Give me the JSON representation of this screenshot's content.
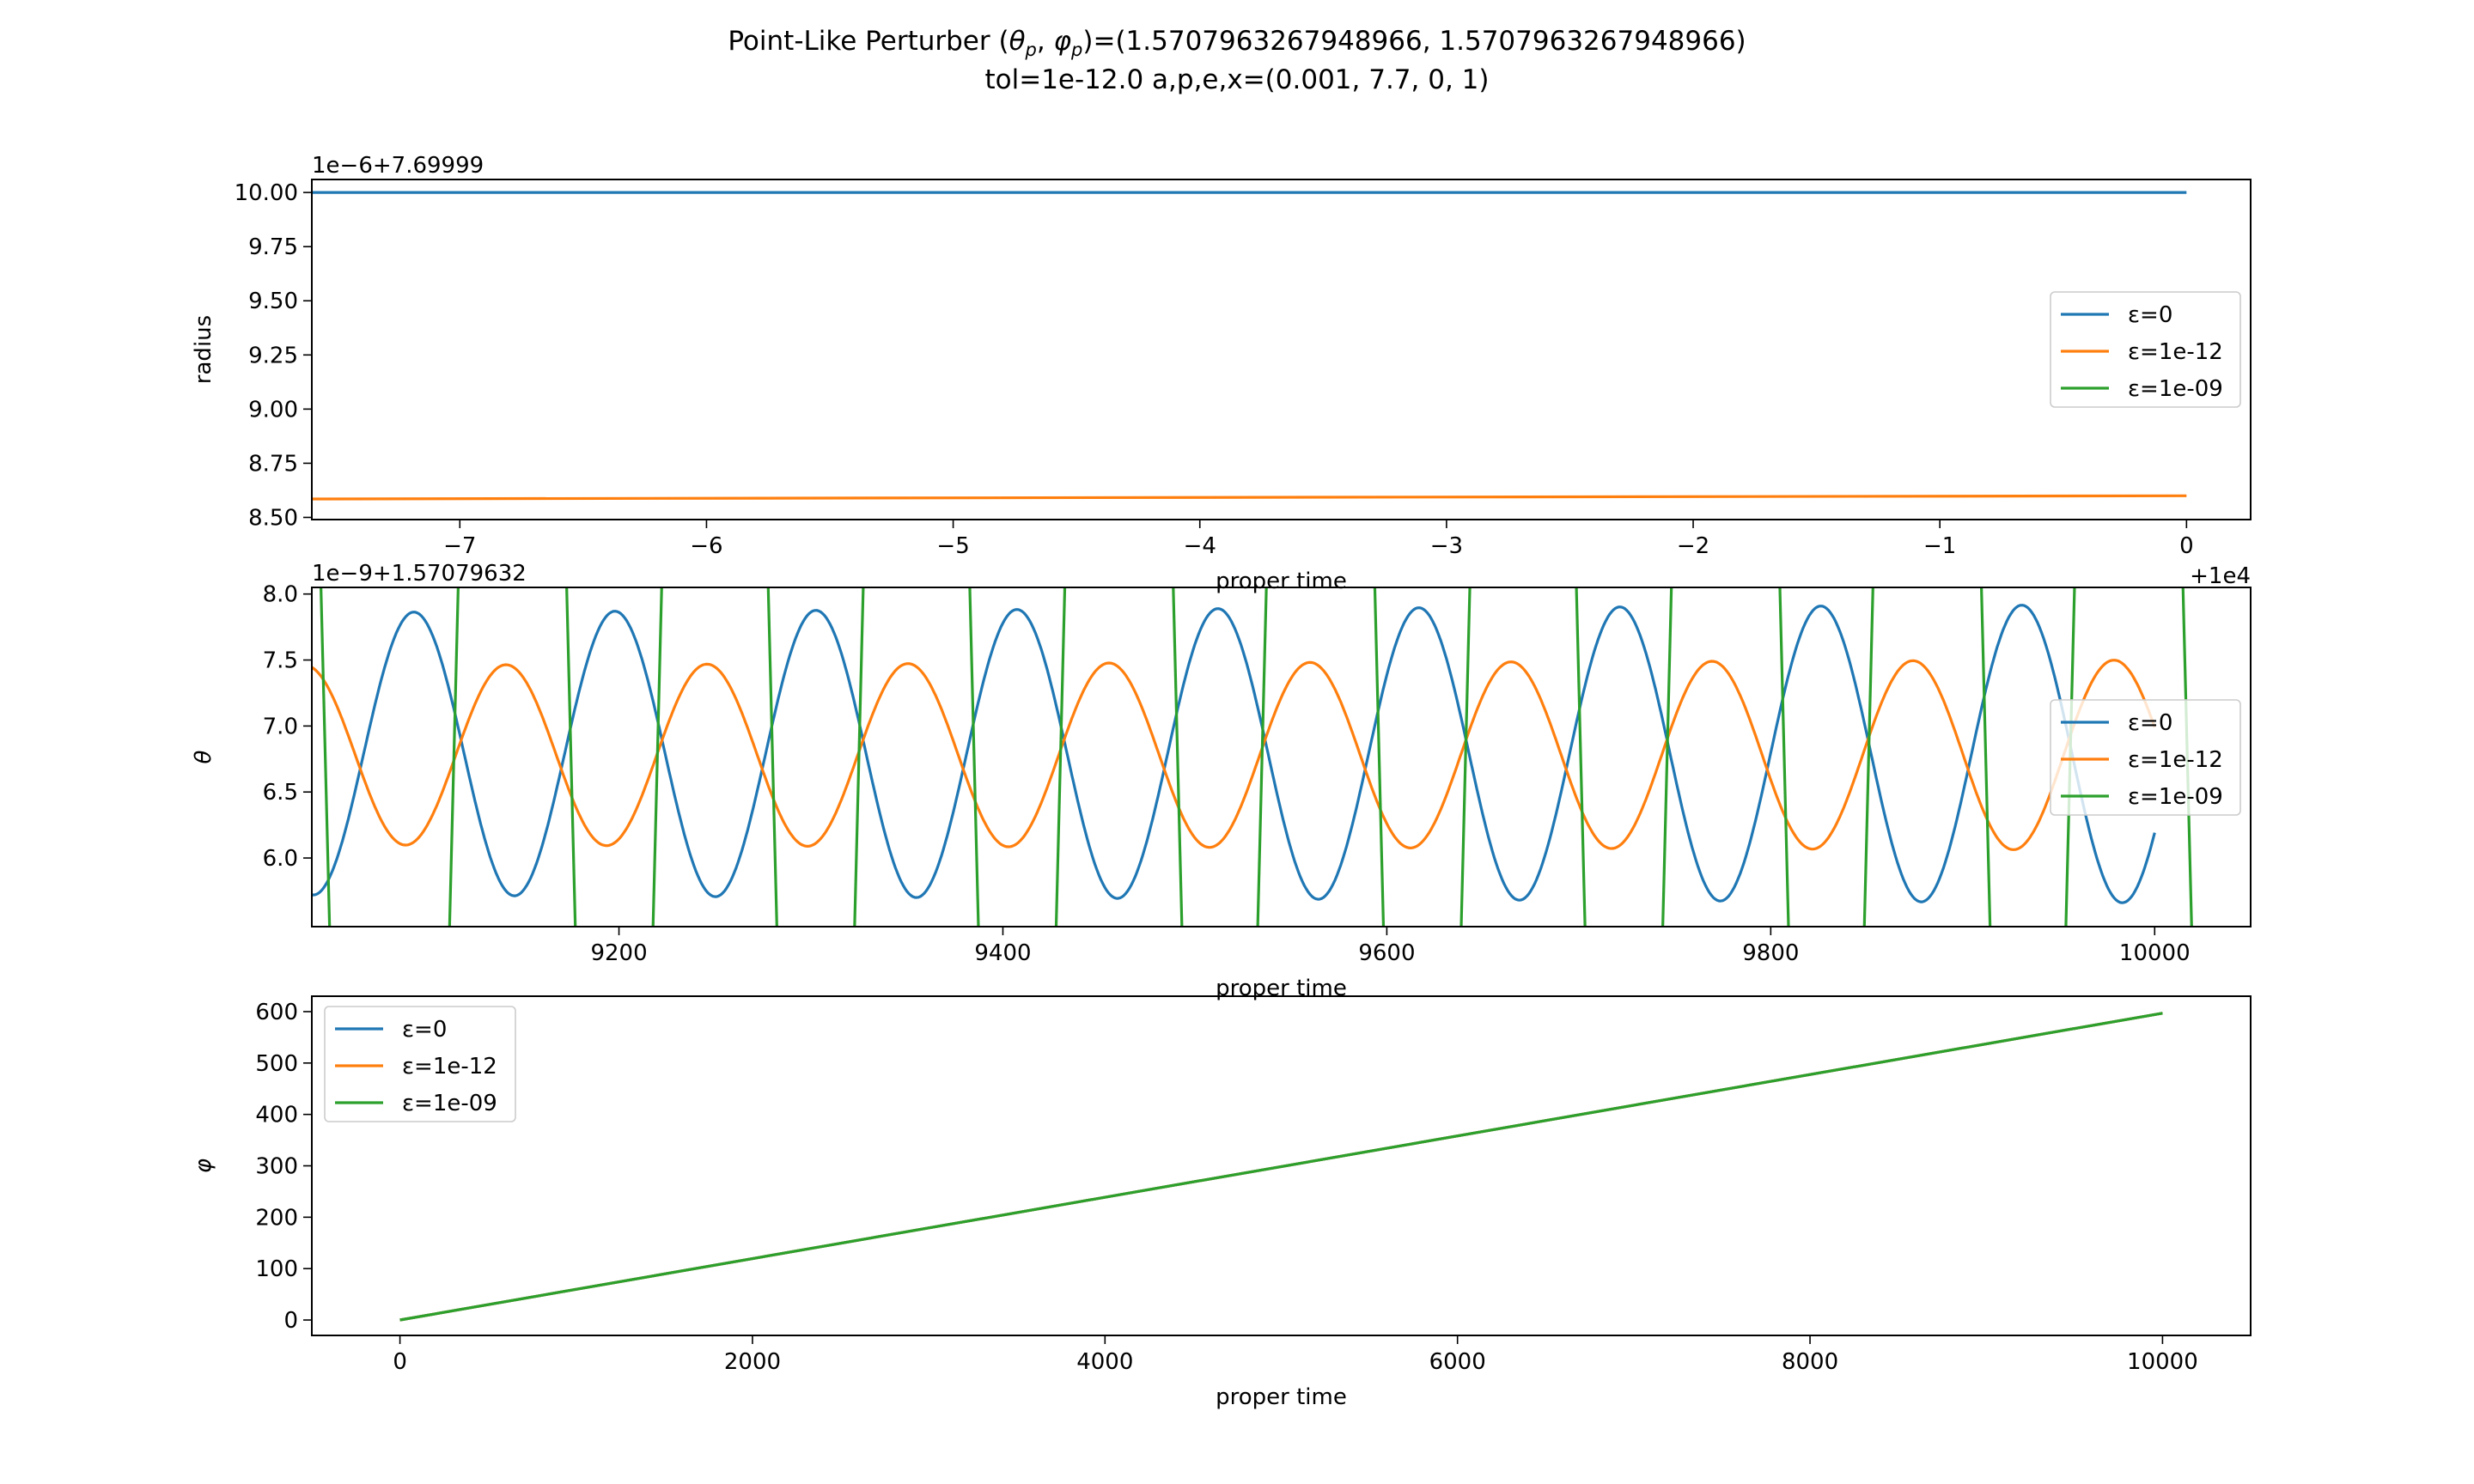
{
  "figure": {
    "title_line1_prefix": "Point-Like Perturber (",
    "title_line1_math": "θp, φp",
    "title_line1_suffix": ")=(1.5707963267948966, 1.5707963267948966)",
    "title_line2": "tol=1e-12.0 a,p,e,x=(0.001, 7.7, 0, 1)"
  },
  "colors": {
    "eps0": "#1f77b4",
    "eps1e12": "#ff7f0e",
    "eps1e09": "#2ca02c"
  },
  "legend_entries": [
    "ε=0",
    "ε=1e-12",
    "ε=1e-09"
  ],
  "chart_data": [
    {
      "type": "line",
      "ylabel": "radius",
      "xlabel": "proper time",
      "y_offset_text": "1e−6+7.69999",
      "x_offset_text": "+1e4",
      "xlim": [
        -7.6,
        0.26
      ],
      "ylim": [
        8.49,
        10.06
      ],
      "xticks": [
        -7,
        -6,
        -5,
        -4,
        -3,
        -2,
        -1,
        0
      ],
      "xtick_labels": [
        "−7",
        "−6",
        "−5",
        "−4",
        "−3",
        "−2",
        "−1",
        "0"
      ],
      "yticks": [
        8.5,
        8.75,
        9.0,
        9.25,
        9.5,
        9.75,
        10.0
      ],
      "ytick_labels": [
        "8.50",
        "8.75",
        "9.00",
        "9.25",
        "9.50",
        "9.75",
        "10.00"
      ],
      "legend_position": "center-right",
      "series": [
        {
          "name": "ε=0",
          "x": [
            -7.6,
            0
          ],
          "y": [
            10.0,
            10.0
          ]
        },
        {
          "name": "ε=1e-12",
          "x": [
            -7.6,
            0
          ],
          "y": [
            8.585,
            8.6
          ]
        },
        {
          "name": "ε=1e-09",
          "x": [],
          "y": []
        }
      ]
    },
    {
      "type": "line",
      "ylabel": "θ",
      "xlabel": "proper time",
      "y_offset_text": "1e−9+1.57079632",
      "xlim": [
        9040,
        10050
      ],
      "ylim": [
        5.48,
        8.05
      ],
      "xticks": [
        9200,
        9400,
        9600,
        9800,
        10000
      ],
      "xtick_labels": [
        "9200",
        "9400",
        "9600",
        "9800",
        "10000"
      ],
      "yticks": [
        6.0,
        6.5,
        7.0,
        7.5,
        8.0
      ],
      "ytick_labels": [
        "6.0",
        "6.5",
        "7.0",
        "7.5",
        "8.0"
      ],
      "legend_position": "center-right",
      "series": [
        {
          "name": "ε=0",
          "period": 104.7,
          "center": 6.79,
          "amp0": 1.07,
          "amp1": 1.13,
          "phase_x": 9067,
          "end_x": 10000
        },
        {
          "name": "ε=1e-12",
          "period": 104.7,
          "center": 6.78,
          "amp0": 0.68,
          "amp1": 0.72,
          "phase_x": 9115,
          "end_x": 10000
        },
        {
          "name": "ε=1e-09",
          "slope_per_unit": -0.18,
          "crossings_at_top": [
            9043,
            9118,
            9171,
            9224,
            9276,
            9329,
            9381,
            9434,
            9487,
            9539,
            9592,
            9645,
            9697,
            9750,
            9803,
            9855,
            9908,
            9960,
            10013
          ]
        }
      ]
    },
    {
      "type": "line",
      "ylabel": "φ",
      "xlabel": "proper time",
      "xlim": [
        -500,
        10500
      ],
      "ylim": [
        -30,
        630
      ],
      "xticks": [
        0,
        2000,
        4000,
        6000,
        8000,
        10000
      ],
      "xtick_labels": [
        "0",
        "2000",
        "4000",
        "6000",
        "8000",
        "10000"
      ],
      "yticks": [
        0,
        100,
        200,
        300,
        400,
        500,
        600
      ],
      "ytick_labels": [
        "0",
        "100",
        "200",
        "300",
        "400",
        "500",
        "600"
      ],
      "legend_position": "upper-left",
      "series": [
        {
          "name": "ε=0",
          "x": [
            0,
            10000
          ],
          "y": [
            0,
            597
          ]
        },
        {
          "name": "ε=1e-12",
          "x": [
            0,
            10000
          ],
          "y": [
            0,
            597
          ]
        },
        {
          "name": "ε=1e-09",
          "x": [
            0,
            10000
          ],
          "y": [
            0,
            597
          ]
        }
      ]
    }
  ]
}
